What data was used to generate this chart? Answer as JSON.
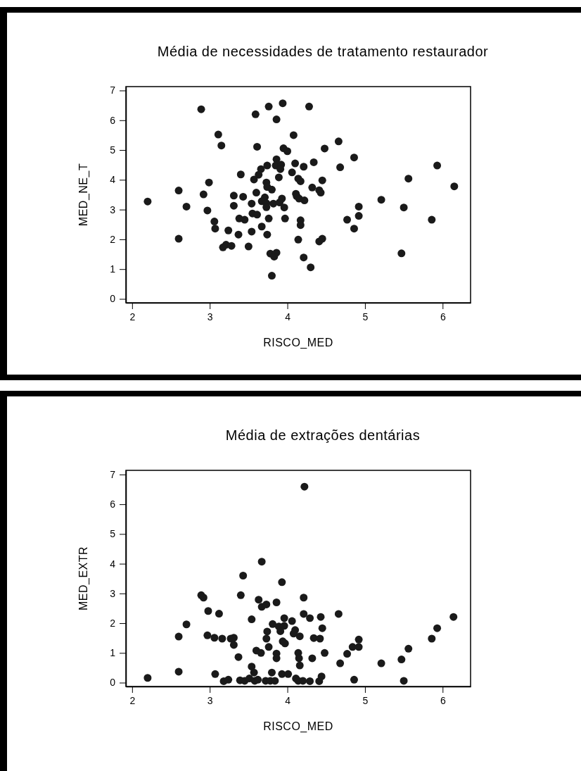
{
  "chart_data": [
    {
      "type": "scatter",
      "title": "Média de necessidades de tratamento restaurador",
      "xlabel": "RISCO_MED",
      "ylabel": "MED_NE_T",
      "xlim": [
        1.92,
        6.36
      ],
      "ylim": [
        -0.13,
        7.13
      ],
      "xticks": [
        2,
        3,
        4,
        5,
        6
      ],
      "yticks": [
        0,
        1,
        2,
        3,
        4,
        5,
        6,
        7
      ],
      "marker": "circle",
      "series": [
        {
          "color": "#1a1a1a",
          "x": [
            2.89,
            3.76,
            3.94,
            3.59,
            3.86,
            3.11,
            4.08,
            3.15,
            3.61,
            3.95,
            4.0,
            3.86,
            4.1,
            3.74,
            3.85,
            3.92,
            3.91,
            3.66,
            4.06,
            3.4,
            3.63,
            3.57,
            3.89,
            4.14,
            2.99,
            3.73,
            3.74,
            3.8,
            2.6,
            2.92,
            4.11,
            4.12,
            3.31,
            3.43,
            3.6,
            3.71,
            3.93,
            2.2,
            3.54,
            3.67,
            3.73,
            3.82,
            3.9,
            3.73,
            3.96,
            3.31,
            2.7,
            2.97,
            3.55,
            3.61,
            3.38,
            3.45,
            3.76,
            3.97,
            3.06,
            3.07,
            4.17,
            4.17,
            3.67,
            3.24,
            3.54,
            3.37,
            3.74,
            2.6,
            4.14,
            3.17,
            3.21,
            3.28,
            3.5,
            3.78,
            3.86,
            3.83,
            3.8,
            4.28,
            4.66,
            4.48,
            4.86,
            4.21,
            4.34,
            4.68,
            5.93,
            4.17,
            4.45,
            5.56,
            4.32,
            4.41,
            4.43,
            6.15,
            4.15,
            4.22,
            5.21,
            4.92,
            5.5,
            4.92,
            4.77,
            5.86,
            4.86,
            4.41,
            4.45,
            4.21,
            4.3,
            5.47
          ],
          "values": [
            6.37,
            6.46,
            6.57,
            6.2,
            6.03,
            5.52,
            5.5,
            5.15,
            5.11,
            5.06,
            4.96,
            4.69,
            4.55,
            4.48,
            4.48,
            4.51,
            4.36,
            4.36,
            4.25,
            4.18,
            4.17,
            4.01,
            4.08,
            4.04,
            3.91,
            3.91,
            3.76,
            3.67,
            3.64,
            3.51,
            3.53,
            3.45,
            3.47,
            3.43,
            3.57,
            3.41,
            3.37,
            3.27,
            3.2,
            3.28,
            3.21,
            3.2,
            3.24,
            3.08,
            3.07,
            3.13,
            3.1,
            2.97,
            2.87,
            2.83,
            2.7,
            2.66,
            2.7,
            2.7,
            2.6,
            2.36,
            2.64,
            2.48,
            2.43,
            2.3,
            2.26,
            2.16,
            2.16,
            2.02,
            1.99,
            1.73,
            1.82,
            1.78,
            1.76,
            1.52,
            1.55,
            1.42,
            0.78,
            6.46,
            5.29,
            5.05,
            4.75,
            4.44,
            4.59,
            4.42,
            4.48,
            3.95,
            3.98,
            4.04,
            3.74,
            3.65,
            3.57,
            3.78,
            3.37,
            3.31,
            3.33,
            3.1,
            3.07,
            2.79,
            2.66,
            2.66,
            2.36,
            1.93,
            2.02,
            1.39,
            1.06,
            1.53
          ]
        }
      ]
    },
    {
      "type": "scatter",
      "title": "Média de extrações dentárias",
      "xlabel": "RISCO_MED",
      "ylabel": "MED_EXTR",
      "xlim": [
        1.92,
        6.36
      ],
      "ylim": [
        -0.13,
        7.14
      ],
      "xticks": [
        2,
        3,
        4,
        5,
        6
      ],
      "yticks": [
        0,
        1,
        2,
        3,
        4,
        5,
        6,
        7
      ],
      "marker": "circle",
      "series": [
        {
          "color": "#1a1a1a",
          "x": [
            3.67,
            3.43,
            3.93,
            2.89,
            2.92,
            3.4,
            3.63,
            3.67,
            3.73,
            3.86,
            4.21,
            2.98,
            3.12,
            3.54,
            3.96,
            4.06,
            2.7,
            3.81,
            3.89,
            3.96,
            3.91,
            3.74,
            4.1,
            4.08,
            4.16,
            2.6,
            2.97,
            3.06,
            3.16,
            3.27,
            3.31,
            3.31,
            3.73,
            3.94,
            3.97,
            3.76,
            3.6,
            3.66,
            3.86,
            3.86,
            4.14,
            4.15,
            4.16,
            3.37,
            3.54,
            3.57,
            2.6,
            2.2,
            3.07,
            3.8,
            3.93,
            4.01,
            3.18,
            3.24,
            3.39,
            3.45,
            3.51,
            3.58,
            3.62,
            3.72,
            3.78,
            3.84,
            4.11,
            4.14,
            4.22,
            4.21,
            4.29,
            4.43,
            4.66,
            6.14,
            4.45,
            5.93,
            4.34,
            4.42,
            5.86,
            4.92,
            4.84,
            4.92,
            5.56,
            4.32,
            4.48,
            4.77,
            4.68,
            5.21,
            5.47,
            4.44,
            4.41,
            4.2,
            4.29,
            4.86,
            5.5
          ],
          "values": [
            4.07,
            3.6,
            3.38,
            2.94,
            2.86,
            2.94,
            2.79,
            2.55,
            2.63,
            2.7,
            2.86,
            2.41,
            2.32,
            2.13,
            2.17,
            2.07,
            1.96,
            1.97,
            1.89,
            1.91,
            1.73,
            1.72,
            1.77,
            1.65,
            1.56,
            1.55,
            1.59,
            1.51,
            1.48,
            1.48,
            1.51,
            1.27,
            1.48,
            1.39,
            1.32,
            1.2,
            1.08,
            1.0,
            0.98,
            0.82,
            1.0,
            0.82,
            0.58,
            0.86,
            0.54,
            0.34,
            0.37,
            0.16,
            0.29,
            0.34,
            0.29,
            0.29,
            0.05,
            0.1,
            0.08,
            0.06,
            0.14,
            0.06,
            0.1,
            0.06,
            0.06,
            0.06,
            0.14,
            0.06,
            6.59,
            2.31,
            2.17,
            2.21,
            2.31,
            2.21,
            1.83,
            1.83,
            1.5,
            1.48,
            1.48,
            1.45,
            1.2,
            1.2,
            1.14,
            0.82,
            1.0,
            0.97,
            0.65,
            0.65,
            0.78,
            0.21,
            0.05,
            0.06,
            0.05,
            0.1,
            0.06
          ]
        }
      ]
    }
  ]
}
